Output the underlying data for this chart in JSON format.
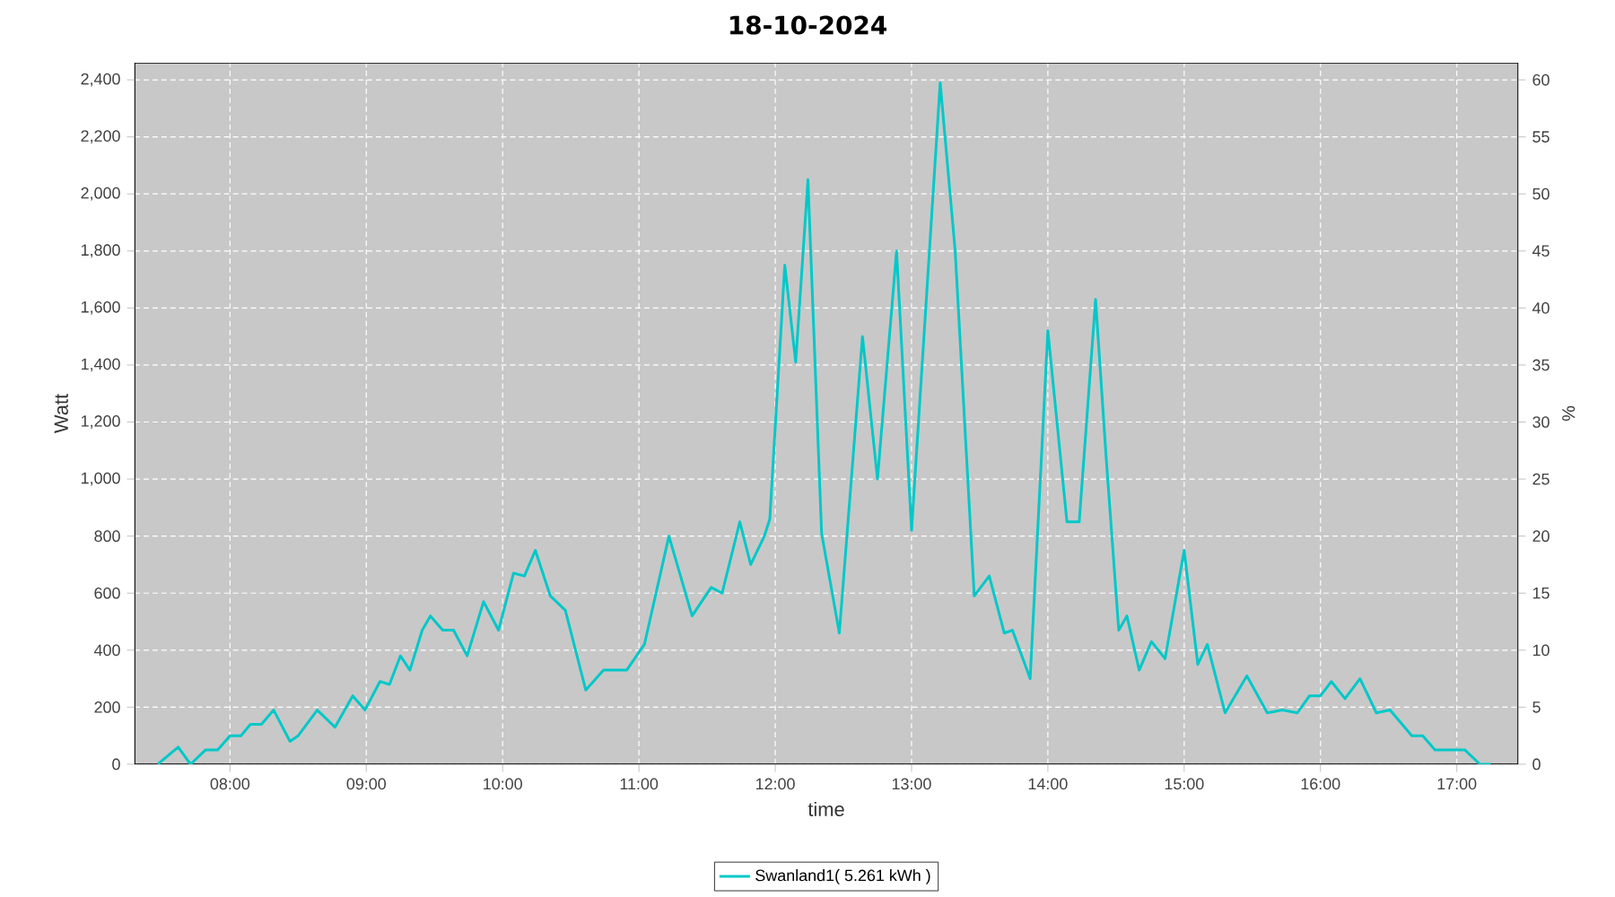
{
  "chart_data": {
    "type": "line",
    "title": "18-10-2024",
    "xlabel": "time",
    "ylabel": "Watt",
    "y2label": "%",
    "x": [
      7.47,
      7.62,
      7.71,
      7.82,
      7.91,
      8.0,
      8.08,
      8.15,
      8.23,
      8.32,
      8.44,
      8.5,
      8.64,
      8.77,
      8.9,
      8.99,
      9.1,
      9.17,
      9.25,
      9.32,
      9.41,
      9.47,
      9.56,
      9.64,
      9.74,
      9.86,
      9.97,
      10.08,
      10.16,
      10.24,
      10.35,
      10.46,
      10.61,
      10.74,
      10.91,
      11.04,
      11.22,
      11.39,
      11.53,
      11.61,
      11.74,
      11.82,
      11.92,
      11.96,
      12.07,
      12.15,
      12.24,
      12.34,
      12.47,
      12.64,
      12.75,
      12.89,
      13.0,
      13.21,
      13.32,
      13.46,
      13.57,
      13.68,
      13.74,
      13.87,
      14.0,
      14.14,
      14.23,
      14.35,
      14.43,
      14.52,
      14.58,
      14.67,
      14.76,
      14.86,
      15.0,
      15.1,
      15.17,
      15.3,
      15.46,
      15.61,
      15.72,
      15.83,
      15.92,
      16.0,
      16.08,
      16.18,
      16.29,
      16.41,
      16.51,
      16.67,
      16.75,
      16.84,
      16.95,
      17.06,
      17.17,
      17.25
    ],
    "series": [
      {
        "name": "Swanland1( 5.261 kWh )",
        "color": "#00c8c8",
        "values": [
          0,
          60,
          0,
          50,
          50,
          100,
          100,
          140,
          140,
          190,
          80,
          100,
          190,
          130,
          240,
          190,
          290,
          280,
          380,
          330,
          470,
          520,
          470,
          470,
          380,
          570,
          470,
          670,
          660,
          750,
          590,
          540,
          260,
          330,
          330,
          420,
          800,
          520,
          620,
          600,
          850,
          700,
          800,
          860,
          1750,
          1410,
          2050,
          810,
          460,
          1500,
          1000,
          1800,
          820,
          2390,
          1800,
          590,
          660,
          460,
          470,
          300,
          1520,
          850,
          850,
          1630,
          1060,
          470,
          520,
          330,
          430,
          370,
          750,
          350,
          420,
          180,
          310,
          180,
          190,
          180,
          240,
          240,
          290,
          230,
          300,
          180,
          190,
          100,
          100,
          50,
          50,
          50,
          0,
          0
        ]
      }
    ],
    "xlim": [
      7.3,
      17.45
    ],
    "ylim": [
      0,
      2460
    ],
    "y2lim": [
      0,
      61.5
    ],
    "xticks": [
      {
        "value": 8,
        "label": "08:00"
      },
      {
        "value": 9,
        "label": "09:00"
      },
      {
        "value": 10,
        "label": "10:00"
      },
      {
        "value": 11,
        "label": "11:00"
      },
      {
        "value": 12,
        "label": "12:00"
      },
      {
        "value": 13,
        "label": "13:00"
      },
      {
        "value": 14,
        "label": "14:00"
      },
      {
        "value": 15,
        "label": "15:00"
      },
      {
        "value": 16,
        "label": "16:00"
      },
      {
        "value": 17,
        "label": "17:00"
      }
    ],
    "yticks": [
      0,
      200,
      400,
      600,
      800,
      {
        "value": 1000,
        "label": "1,000"
      },
      {
        "value": 1200,
        "label": "1,200"
      },
      {
        "value": 1400,
        "label": "1,400"
      },
      {
        "value": 1600,
        "label": "1,600"
      },
      {
        "value": 1800,
        "label": "1,800"
      },
      {
        "value": 2000,
        "label": "2,000"
      },
      {
        "value": 2200,
        "label": "2,200"
      },
      {
        "value": 2400,
        "label": "2,400"
      }
    ],
    "y2ticks": [
      0,
      5,
      10,
      15,
      20,
      25,
      30,
      35,
      40,
      45,
      50,
      55,
      60
    ],
    "grid": true,
    "legend": "bottom",
    "marker": "none",
    "line_style": "solid"
  }
}
